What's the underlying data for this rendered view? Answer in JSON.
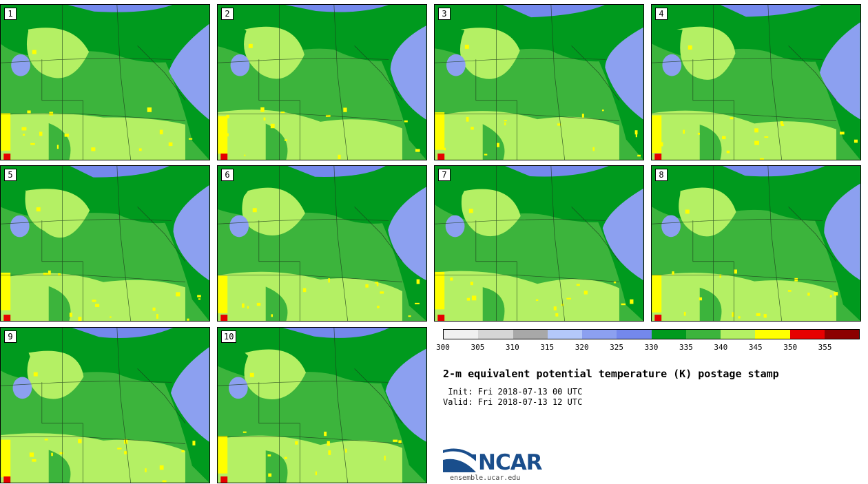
{
  "panels": [
    {
      "label": "1"
    },
    {
      "label": "2"
    },
    {
      "label": "3"
    },
    {
      "label": "4"
    },
    {
      "label": "5"
    },
    {
      "label": "6"
    },
    {
      "label": "7"
    },
    {
      "label": "8"
    },
    {
      "label": "9"
    },
    {
      "label": "10"
    }
  ],
  "colorbar": {
    "colors": [
      "#f0f0f0",
      "#d6d6d6",
      "#a8a8a8",
      "#b4c8fa",
      "#8ca0f0",
      "#7488ec",
      "#009a1e",
      "#3cb43c",
      "#b4f064",
      "#ffff00",
      "#e60000",
      "#8c0000"
    ],
    "ticks": [
      "300",
      "305",
      "310",
      "315",
      "320",
      "325",
      "330",
      "335",
      "340",
      "345",
      "350",
      "355"
    ]
  },
  "title": "2-m equivalent potential temperature (K) postage stamp",
  "init": " Init: Fri 2018-07-13 00 UTC",
  "valid": "Valid: Fri 2018-07-13 12 UTC",
  "logo": {
    "name": "NCAR",
    "url_text": "ensemble.ucar.edu"
  }
}
